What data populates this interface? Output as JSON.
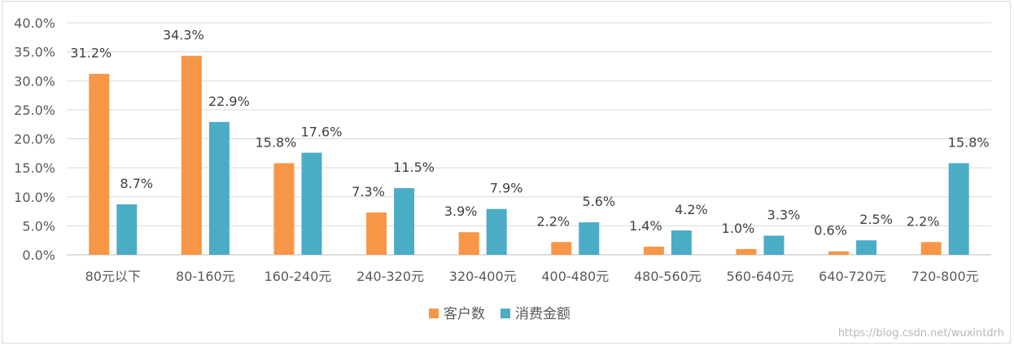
{
  "chart_data": {
    "type": "bar",
    "title": "",
    "xlabel": "",
    "ylabel": "",
    "categories": [
      "80元以下",
      "80-160元",
      "160-240元",
      "240-320元",
      "320-400元",
      "400-480元",
      "480-560元",
      "560-640元",
      "640-720元",
      "720-800元"
    ],
    "series": [
      {
        "name": "客户数",
        "color": "#f79646",
        "values": [
          31.2,
          34.3,
          15.8,
          7.3,
          3.9,
          2.2,
          1.4,
          1.0,
          0.6,
          2.2
        ],
        "labels": [
          "31.2%",
          "34.3%",
          "15.8%",
          "7.3%",
          "3.9%",
          "2.2%",
          "1.4%",
          "1.0%",
          "0.6%",
          "2.2%"
        ]
      },
      {
        "name": "消费金额",
        "color": "#4bacc6",
        "values": [
          8.7,
          22.9,
          17.6,
          11.5,
          7.9,
          5.6,
          4.2,
          3.3,
          2.5,
          15.8
        ],
        "labels": [
          "8.7%",
          "22.9%",
          "17.6%",
          "11.5%",
          "7.9%",
          "5.6%",
          "4.2%",
          "3.3%",
          "2.5%",
          "15.8%"
        ]
      }
    ],
    "yticks": [
      "0.0%",
      "5.0%",
      "10.0%",
      "15.0%",
      "20.0%",
      "25.0%",
      "30.0%",
      "35.0%",
      "40.0%"
    ],
    "ylim": [
      0,
      40
    ],
    "grid": true,
    "legend_position": "bottom"
  },
  "watermark": "https://blog.csdn.net/wuxintdrh"
}
